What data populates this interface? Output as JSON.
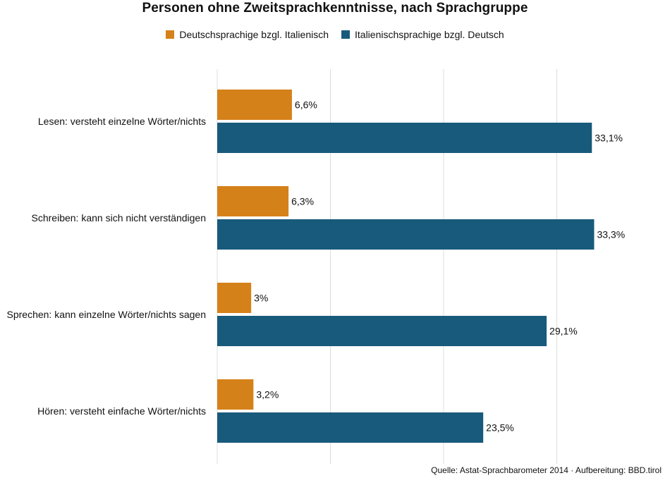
{
  "chart_data": {
    "type": "bar",
    "orientation": "horizontal",
    "title": "Personen ohne Zweitsprachkenntnisse, nach Sprachgruppe",
    "categories": [
      "Lesen: versteht einzelne Wörter/nichts",
      "Schreiben: kann sich nicht verständigen",
      "Sprechen: kann einzelne Wörter/nichts sagen",
      "Hören: versteht einfache Wörter/nichts"
    ],
    "series": [
      {
        "name": "Deutschsprachige bzgl. Italienisch",
        "color": "#d58119",
        "values": [
          6.6,
          6.3,
          3.0,
          3.2
        ],
        "labels": [
          "6,6%",
          "6,3%",
          "3%",
          "3,2%"
        ]
      },
      {
        "name": "Italienischsprachige bzgl. Deutsch",
        "color": "#185a7b",
        "values": [
          33.1,
          33.3,
          29.1,
          23.5
        ],
        "labels": [
          "33,1%",
          "33,3%",
          "29,1%",
          "23,5%"
        ]
      }
    ],
    "xlim": [
      0,
      40
    ],
    "grid_values": [
      0,
      10,
      20,
      30
    ],
    "xlabel": "",
    "ylabel": "",
    "legend_position": "top-center"
  },
  "source": "Quelle: Astat-Sprachbarometer 2014 · Aufbereitung: BBD.tirol"
}
